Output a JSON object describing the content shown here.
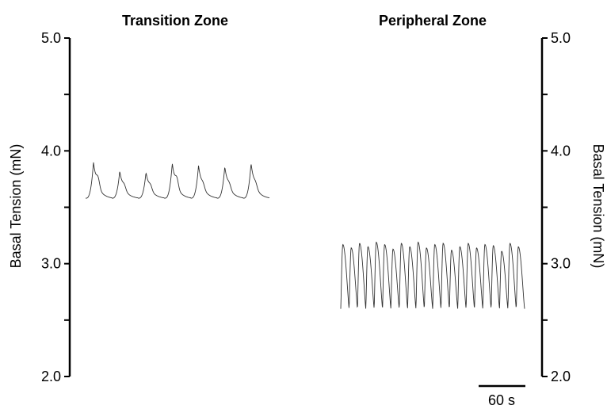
{
  "chart_data": [
    {
      "type": "line",
      "title": "Transition Zone",
      "ylabel": "Basal Tension (mN)",
      "ylim": [
        2.0,
        5.0
      ],
      "yticks": [
        2.0,
        2.5,
        3.0,
        3.5,
        4.0,
        4.5,
        5.0
      ],
      "ytick_labels": [
        "2.0",
        "3.0",
        "4.0",
        "5.0"
      ],
      "y_axis_side": "left",
      "grid": false,
      "series": [
        {
          "color": "#333333",
          "baseline": 3.6,
          "contraction_count": 7,
          "peaks": [
            3.9,
            3.82,
            3.81,
            3.89,
            3.87,
            3.86,
            3.89
          ]
        }
      ]
    },
    {
      "type": "line",
      "title": "Peripheral Zone",
      "ylabel": "Basal Tension (mN)",
      "ylim": [
        2.0,
        5.0
      ],
      "yticks": [
        2.0,
        2.5,
        3.0,
        3.5,
        4.0,
        4.5,
        5.0
      ],
      "ytick_labels": [
        "2.0",
        "3.0",
        "4.0",
        "5.0"
      ],
      "y_axis_side": "right",
      "grid": false,
      "series": [
        {
          "color": "#333333",
          "baseline": 2.6,
          "peak": 3.17,
          "contraction_count": 22
        }
      ]
    }
  ],
  "scale_bar": {
    "label": "60 s",
    "seconds": 60
  }
}
